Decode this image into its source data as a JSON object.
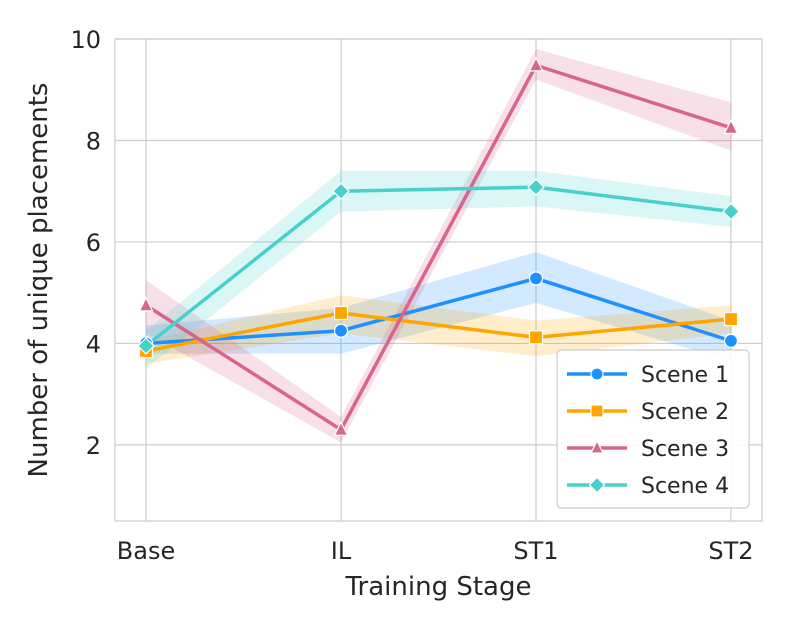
{
  "chart_data": {
    "type": "line",
    "title": "",
    "xlabel": "Training Stage",
    "ylabel": "Number of unique placements",
    "categories": [
      "Base",
      "IL",
      "ST1",
      "ST2"
    ],
    "ylim": [
      0.5,
      10
    ],
    "yticks": [
      2,
      4,
      6,
      8,
      10
    ],
    "ytick_labels": [
      "2",
      "4",
      "6",
      "8",
      "10"
    ],
    "grid": true,
    "legend_position": "lower-right",
    "series": [
      {
        "name": "Scene 1",
        "color": "#1e90ff",
        "marker": "circle",
        "values": [
          4.0,
          4.25,
          5.28,
          4.05
        ],
        "lower": [
          3.8,
          3.8,
          4.8,
          3.65
        ],
        "upper": [
          4.35,
          4.7,
          5.8,
          4.45
        ]
      },
      {
        "name": "Scene 2",
        "color": "#ffa500",
        "marker": "square",
        "values": [
          3.85,
          4.6,
          4.12,
          4.48
        ],
        "lower": [
          3.6,
          4.2,
          3.75,
          4.2
        ],
        "upper": [
          4.05,
          4.95,
          4.45,
          4.75
        ]
      },
      {
        "name": "Scene 3",
        "color": "#d9648c",
        "marker": "triangle",
        "values": [
          4.75,
          2.3,
          9.48,
          8.25
        ],
        "lower": [
          4.2,
          2.05,
          9.2,
          7.8
        ],
        "upper": [
          5.25,
          2.55,
          9.8,
          8.75
        ]
      },
      {
        "name": "Scene 4",
        "color": "#48d1cc",
        "marker": "diamond",
        "values": [
          3.95,
          7.0,
          7.08,
          6.6
        ],
        "lower": [
          3.5,
          6.6,
          6.7,
          6.3
        ],
        "upper": [
          4.25,
          7.4,
          7.4,
          6.9
        ]
      }
    ]
  }
}
